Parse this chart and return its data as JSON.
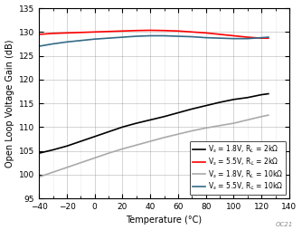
{
  "xlabel": "Temperature (°C)",
  "ylabel": "Open Loop Voltage Gain (dB)",
  "xlim": [
    -40,
    140
  ],
  "ylim": [
    95,
    135
  ],
  "xticks": [
    -40,
    -20,
    0,
    20,
    40,
    60,
    80,
    100,
    120,
    140
  ],
  "yticks": [
    95,
    100,
    105,
    110,
    115,
    120,
    125,
    130,
    135
  ],
  "series": [
    {
      "label": "V$_s$ = 1.8V, R$_L$ = 2kΩ",
      "color": "#000000",
      "linewidth": 1.2,
      "x": [
        -40,
        -30,
        -20,
        -10,
        0,
        10,
        20,
        30,
        40,
        50,
        60,
        70,
        80,
        90,
        100,
        110,
        120,
        125
      ],
      "y": [
        104.5,
        105.2,
        106.0,
        107.0,
        108.0,
        109.0,
        110.0,
        110.8,
        111.5,
        112.2,
        113.0,
        113.8,
        114.5,
        115.2,
        115.8,
        116.2,
        116.8,
        117.0
      ]
    },
    {
      "label": "V$_s$ = 5.5V, R$_L$ = 2kΩ",
      "color": "#ff0000",
      "linewidth": 1.2,
      "x": [
        -40,
        -30,
        -20,
        -10,
        0,
        10,
        20,
        30,
        40,
        50,
        60,
        70,
        80,
        90,
        100,
        110,
        120,
        125
      ],
      "y": [
        129.5,
        129.7,
        129.8,
        129.9,
        130.0,
        130.1,
        130.2,
        130.3,
        130.35,
        130.3,
        130.2,
        130.0,
        129.8,
        129.5,
        129.2,
        128.9,
        128.7,
        128.7
      ]
    },
    {
      "label": "V$_s$ = 1.8V, R$_L$ = 10kΩ",
      "color": "#aaaaaa",
      "linewidth": 1.2,
      "x": [
        -40,
        -30,
        -20,
        -10,
        0,
        10,
        20,
        30,
        40,
        50,
        60,
        70,
        80,
        90,
        100,
        110,
        120,
        125
      ],
      "y": [
        99.5,
        100.5,
        101.5,
        102.5,
        103.5,
        104.5,
        105.4,
        106.2,
        107.0,
        107.8,
        108.5,
        109.2,
        109.8,
        110.3,
        110.8,
        111.5,
        112.2,
        112.5
      ]
    },
    {
      "label": "V$_s$ = 5.5V, R$_L$ = 10kΩ",
      "color": "#336b87",
      "linewidth": 1.2,
      "x": [
        -40,
        -30,
        -20,
        -10,
        0,
        10,
        20,
        30,
        40,
        50,
        60,
        70,
        80,
        90,
        100,
        110,
        120,
        125
      ],
      "y": [
        127.0,
        127.5,
        127.9,
        128.2,
        128.5,
        128.7,
        128.9,
        129.1,
        129.2,
        129.2,
        129.1,
        129.0,
        128.8,
        128.7,
        128.6,
        128.6,
        128.8,
        128.9
      ]
    }
  ],
  "legend_fontsize": 5.5,
  "tick_fontsize": 6.5,
  "label_fontsize": 7,
  "grid_color": "#888888",
  "grid_alpha": 0.5,
  "minor_grid_color": "#cccccc",
  "minor_grid_alpha": 0.4,
  "background_color": "#ffffff",
  "watermark": "OC21"
}
